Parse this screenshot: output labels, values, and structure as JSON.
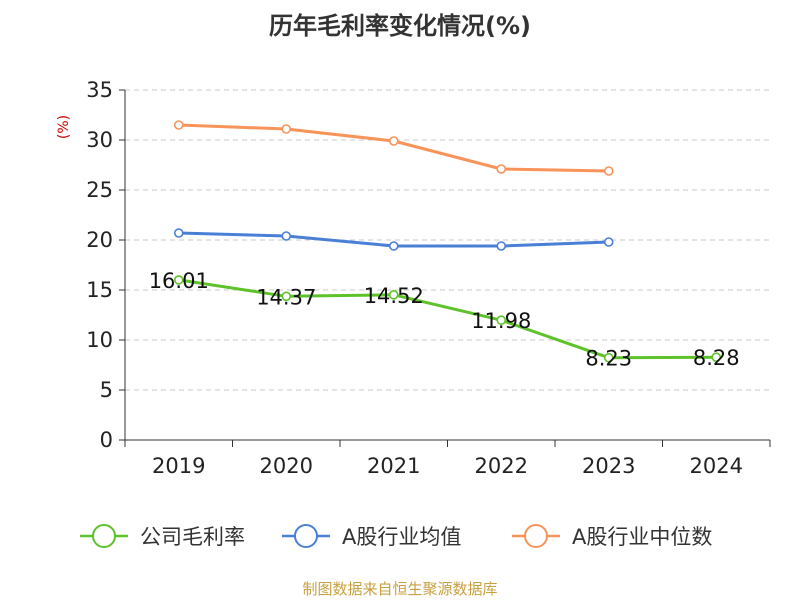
{
  "chart_data": {
    "type": "line",
    "title": "历年毛利率变化情况(%)",
    "ylabel": "(%)",
    "categories": [
      "2019",
      "2020",
      "2021",
      "2022",
      "2023",
      "2024"
    ],
    "ylim": [
      0,
      35
    ],
    "yticks": [
      0,
      5,
      10,
      15,
      20,
      25,
      30,
      35
    ],
    "grid": true,
    "legend": "bottom",
    "series": [
      {
        "name": "公司毛利率",
        "color": "#5ec22a",
        "values": [
          16.01,
          14.37,
          14.52,
          11.98,
          8.23,
          8.28
        ],
        "labels": [
          "16.01",
          "14.37",
          "14.52",
          "11.98",
          "8.23",
          "8.28"
        ]
      },
      {
        "name": "A股行业均值",
        "color": "#4a7fd6",
        "values": [
          20.7,
          20.4,
          19.4,
          19.4,
          19.8,
          null
        ]
      },
      {
        "name": "A股行业中位数",
        "color": "#f8935a",
        "values": [
          31.5,
          31.1,
          29.9,
          27.1,
          26.9,
          null
        ]
      }
    ]
  },
  "source": "制图数据来自恒生聚源数据库"
}
